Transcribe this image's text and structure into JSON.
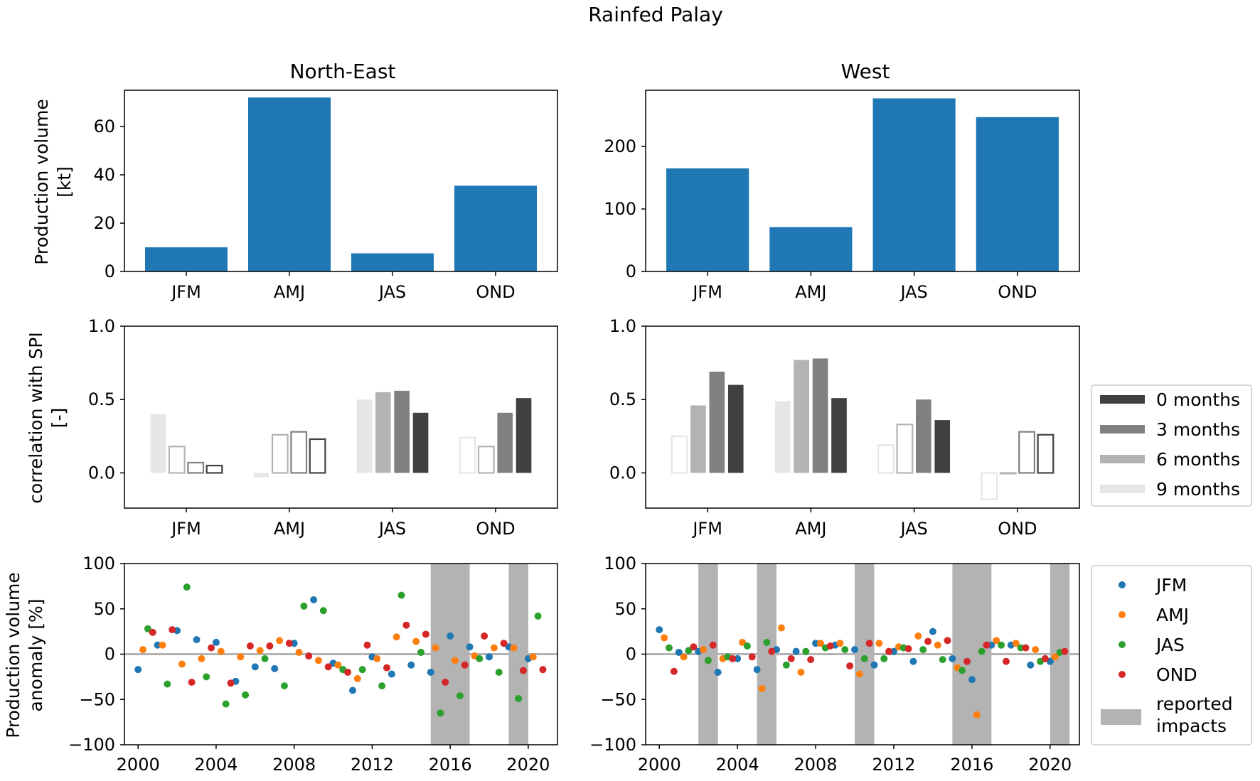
{
  "figure": {
    "title": "Rainfed Palay"
  },
  "colors": {
    "bar_blue": "#1f77b4",
    "jfm": "#1f77b4",
    "amj": "#ff7f0e",
    "jas": "#2ca02c",
    "ond": "#d62728",
    "impact": "#b3b3b3",
    "zero_line": "#b3b3b3",
    "lag0": "#404040",
    "lag3": "#808080",
    "lag6": "#b3b3b3",
    "lag9": "#e6e6e6"
  },
  "chart_data": [
    {
      "id": "ne-production",
      "type": "bar",
      "panel_title": "North-East",
      "ylabel_line1": "Production volume",
      "ylabel_line2": "[kt]",
      "categories": [
        "JFM",
        "AMJ",
        "JAS",
        "OND"
      ],
      "values": [
        10,
        72,
        7.5,
        35.5
      ],
      "ylim": [
        0,
        75
      ],
      "yticks": [
        0,
        20,
        40,
        60
      ]
    },
    {
      "id": "w-production",
      "type": "bar",
      "panel_title": "West",
      "categories": [
        "JFM",
        "AMJ",
        "JAS",
        "OND"
      ],
      "values": [
        165,
        71,
        277,
        247
      ],
      "ylim": [
        0,
        290
      ],
      "yticks": [
        0,
        100,
        200
      ]
    },
    {
      "id": "ne-correlation",
      "type": "bar",
      "ylabel_line1": "correlation with SPI",
      "ylabel_line2": "[-]",
      "categories": [
        "JFM",
        "AMJ",
        "JAS",
        "OND"
      ],
      "lags": [
        "9 months",
        "6 months",
        "3 months",
        "0 months"
      ],
      "values": [
        [
          0.4,
          0.18,
          0.07,
          0.05
        ],
        [
          -0.03,
          0.26,
          0.28,
          0.23
        ],
        [
          0.5,
          0.55,
          0.56,
          0.41
        ],
        [
          0.24,
          0.18,
          0.41,
          0.51
        ]
      ],
      "significant": [
        [
          true,
          false,
          false,
          false
        ],
        [
          true,
          false,
          false,
          false
        ],
        [
          true,
          true,
          true,
          true
        ],
        [
          false,
          false,
          true,
          true
        ]
      ],
      "ylim": [
        -0.24,
        1.0
      ],
      "yticks": [
        0.0,
        0.5,
        1.0
      ]
    },
    {
      "id": "w-correlation",
      "type": "bar",
      "categories": [
        "JFM",
        "AMJ",
        "JAS",
        "OND"
      ],
      "lags": [
        "9 months",
        "6 months",
        "3 months",
        "0 months"
      ],
      "values": [
        [
          0.25,
          0.46,
          0.69,
          0.6
        ],
        [
          0.49,
          0.77,
          0.78,
          0.51
        ],
        [
          0.19,
          0.33,
          0.5,
          0.36
        ],
        [
          -0.18,
          0.0,
          0.28,
          0.26
        ]
      ],
      "significant": [
        [
          false,
          true,
          true,
          true
        ],
        [
          true,
          true,
          true,
          true
        ],
        [
          false,
          false,
          true,
          true
        ],
        [
          false,
          false,
          false,
          false
        ]
      ],
      "ylim": [
        -0.24,
        1.0
      ],
      "yticks": [
        0.0,
        0.5,
        1.0
      ]
    },
    {
      "id": "ne-anomaly",
      "type": "scatter",
      "ylabel_line1": "Production volume",
      "ylabel_line2": "anomaly [%]",
      "xlim": [
        1999.3,
        2021.5
      ],
      "ylim": [
        -100,
        100
      ],
      "xticks": [
        2000,
        2004,
        2008,
        2012,
        2016,
        2020
      ],
      "yticks": [
        -100,
        -50,
        0,
        50,
        100
      ],
      "impact_periods": [
        [
          2015,
          2017
        ],
        [
          2019,
          2020
        ]
      ],
      "series": [
        {
          "name": "JFM",
          "x": [
            2000.0,
            2001.0,
            2002.0,
            2003.0,
            2004.0,
            2005.0,
            2006.0,
            2007.0,
            2008.0,
            2009.0,
            2010.0,
            2011.0,
            2012.0,
            2013.0,
            2014.0,
            2015.0,
            2016.0,
            2017.0,
            2018.0,
            2019.0,
            2020.0
          ],
          "y": [
            -17,
            10,
            26,
            16,
            13,
            -30,
            -14,
            -16,
            12,
            60,
            -10,
            -40,
            -3,
            -22,
            -12,
            -20,
            20,
            8,
            -3,
            8,
            -5
          ]
        },
        {
          "name": "AMJ",
          "x": [
            2000.25,
            2001.25,
            2002.25,
            2003.25,
            2004.25,
            2005.25,
            2006.25,
            2007.25,
            2008.25,
            2009.25,
            2010.25,
            2011.25,
            2012.25,
            2013.25,
            2014.25,
            2015.25,
            2016.25,
            2017.25,
            2018.25,
            2019.25,
            2020.25
          ],
          "y": [
            5,
            10,
            -11,
            -5,
            3,
            -3,
            4,
            15,
            2,
            -7,
            -12,
            -27,
            -5,
            19,
            14,
            7,
            -7,
            -2,
            7,
            7,
            -3
          ]
        },
        {
          "name": "JAS",
          "x": [
            2000.5,
            2001.5,
            2002.5,
            2003.5,
            2004.5,
            2005.5,
            2006.5,
            2007.5,
            2008.5,
            2009.5,
            2010.5,
            2011.5,
            2012.5,
            2013.5,
            2014.5,
            2015.5,
            2016.5,
            2017.5,
            2018.5,
            2019.5,
            2020.5
          ],
          "y": [
            28,
            -33,
            74,
            -25,
            -55,
            -45,
            -5,
            -35,
            53,
            48,
            -17,
            -17,
            -35,
            65,
            2,
            -65,
            -46,
            -5,
            -20,
            -49,
            42
          ]
        },
        {
          "name": "OND",
          "x": [
            2000.75,
            2001.75,
            2002.75,
            2003.75,
            2004.75,
            2005.75,
            2006.75,
            2007.75,
            2008.75,
            2009.75,
            2010.75,
            2011.75,
            2012.75,
            2013.75,
            2014.75,
            2015.75,
            2016.75,
            2017.75,
            2018.75,
            2019.75,
            2020.75
          ],
          "y": [
            24,
            27,
            -31,
            7,
            -32,
            9,
            9,
            12,
            -2,
            -14,
            -20,
            10,
            -15,
            32,
            22,
            -31,
            -12,
            20,
            12,
            -18,
            -17
          ]
        }
      ]
    },
    {
      "id": "w-anomaly",
      "type": "scatter",
      "xlim": [
        1999.3,
        2021.5
      ],
      "ylim": [
        -100,
        100
      ],
      "xticks": [
        2000,
        2004,
        2008,
        2012,
        2016,
        2020
      ],
      "yticks": [
        -100,
        -50,
        0,
        50,
        100
      ],
      "impact_periods": [
        [
          2002,
          2003
        ],
        [
          2005,
          2006
        ],
        [
          2010,
          2011
        ],
        [
          2015,
          2017
        ],
        [
          2020,
          2021
        ]
      ],
      "series": [
        {
          "name": "JFM",
          "x": [
            2000.0,
            2001.0,
            2002.0,
            2003.0,
            2004.0,
            2005.0,
            2006.0,
            2007.0,
            2008.0,
            2009.0,
            2010.0,
            2011.0,
            2012.0,
            2013.0,
            2014.0,
            2015.0,
            2016.0,
            2017.0,
            2018.0,
            2019.0,
            2020.0
          ],
          "y": [
            27,
            2,
            3,
            -20,
            -5,
            -17,
            5,
            3,
            12,
            10,
            5,
            -12,
            3,
            -8,
            25,
            -5,
            -28,
            10,
            10,
            -12,
            -8
          ]
        },
        {
          "name": "AMJ",
          "x": [
            2000.25,
            2001.25,
            2002.25,
            2003.25,
            2004.25,
            2005.25,
            2006.25,
            2007.25,
            2008.25,
            2009.25,
            2010.25,
            2011.25,
            2012.25,
            2013.25,
            2014.25,
            2015.25,
            2016.25,
            2017.25,
            2018.25,
            2019.25,
            2020.25
          ],
          "y": [
            18,
            -3,
            5,
            -5,
            13,
            -38,
            29,
            -20,
            12,
            12,
            -22,
            12,
            8,
            20,
            10,
            -15,
            -67,
            15,
            12,
            5,
            -3
          ]
        },
        {
          "name": "JAS",
          "x": [
            2000.5,
            2001.5,
            2002.5,
            2003.5,
            2004.5,
            2005.5,
            2006.5,
            2007.5,
            2008.5,
            2009.5,
            2010.5,
            2011.5,
            2012.5,
            2013.5,
            2014.5,
            2015.5,
            2016.5,
            2017.5,
            2018.5,
            2019.5,
            2020.5
          ],
          "y": [
            7,
            4,
            -7,
            -3,
            9,
            13,
            -12,
            3,
            7,
            5,
            -5,
            -5,
            7,
            5,
            -6,
            -18,
            3,
            10,
            7,
            -8,
            2
          ]
        },
        {
          "name": "OND",
          "x": [
            2000.75,
            2001.75,
            2002.75,
            2003.75,
            2004.75,
            2005.75,
            2006.75,
            2007.75,
            2008.75,
            2009.75,
            2010.75,
            2011.75,
            2012.75,
            2013.75,
            2014.75,
            2015.75,
            2016.75,
            2017.75,
            2018.75,
            2019.75,
            2020.75
          ],
          "y": [
            -19,
            8,
            10,
            -5,
            -3,
            3,
            -5,
            -6,
            9,
            -13,
            12,
            3,
            6,
            14,
            15,
            -8,
            10,
            -8,
            7,
            -5,
            3
          ]
        }
      ]
    }
  ],
  "legends": {
    "lag_items": [
      "0 months",
      "3 months",
      "6 months",
      "9 months"
    ],
    "season_items": [
      "JFM",
      "AMJ",
      "JAS",
      "OND"
    ],
    "impact_label_line1": "reported",
    "impact_label_line2": "impacts"
  }
}
